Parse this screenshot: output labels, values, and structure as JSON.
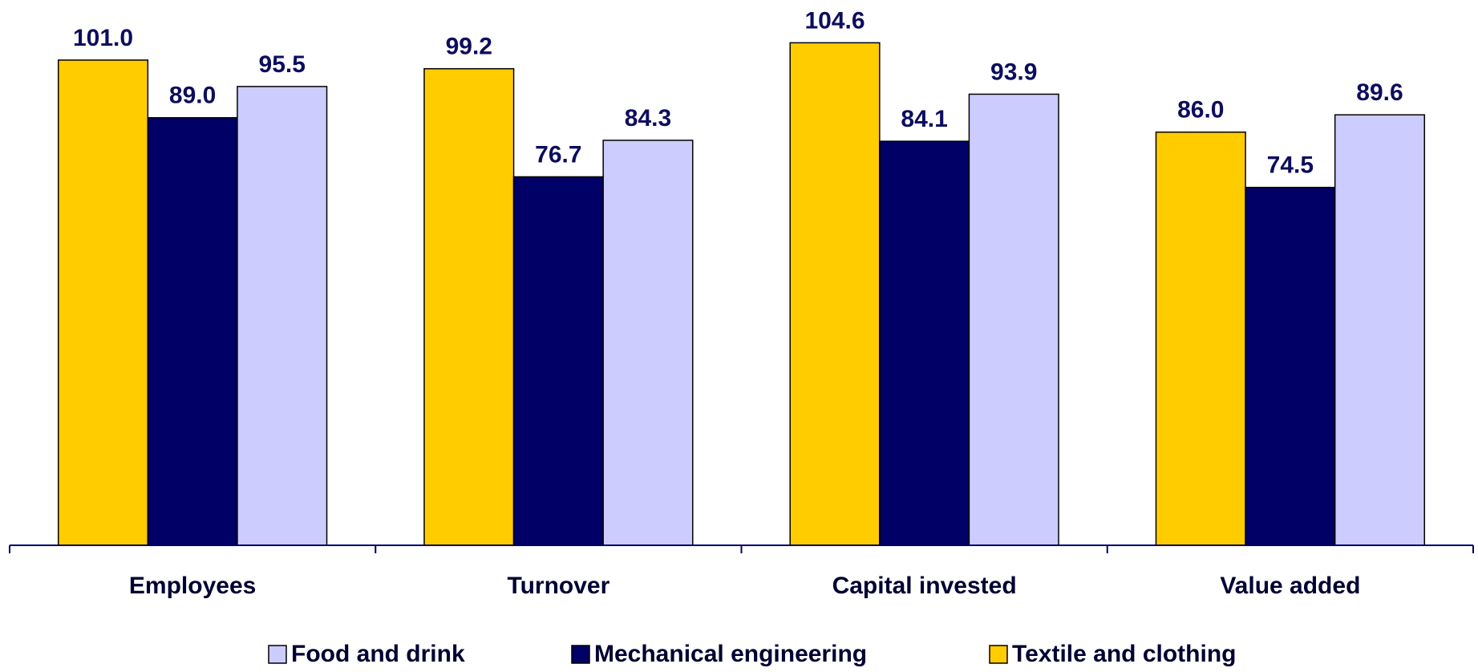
{
  "chart_data": {
    "type": "bar",
    "categories": [
      "Employees",
      "Turnover",
      "Capital invested",
      "Value added"
    ],
    "series": [
      {
        "name": "Food and drink",
        "color": "#ccccff",
        "values": [
          95.5,
          84.3,
          93.9,
          89.6
        ],
        "value_labels": [
          "95.5",
          "84.3",
          "93.9",
          "89.6"
        ]
      },
      {
        "name": "Mechanical engineering",
        "color": "#000066",
        "values": [
          89.0,
          76.7,
          84.1,
          74.5
        ],
        "value_labels": [
          "89.0",
          "76.7",
          "84.1",
          "74.5"
        ]
      },
      {
        "name": "Textile and clothing",
        "color": "#ffcc00",
        "values": [
          101.0,
          99.2,
          104.6,
          86.0
        ],
        "value_labels": [
          "101.0",
          "99.2",
          "104.6",
          "86.0"
        ]
      }
    ],
    "ylim": [
      0,
      110
    ],
    "legend": "bottom"
  }
}
